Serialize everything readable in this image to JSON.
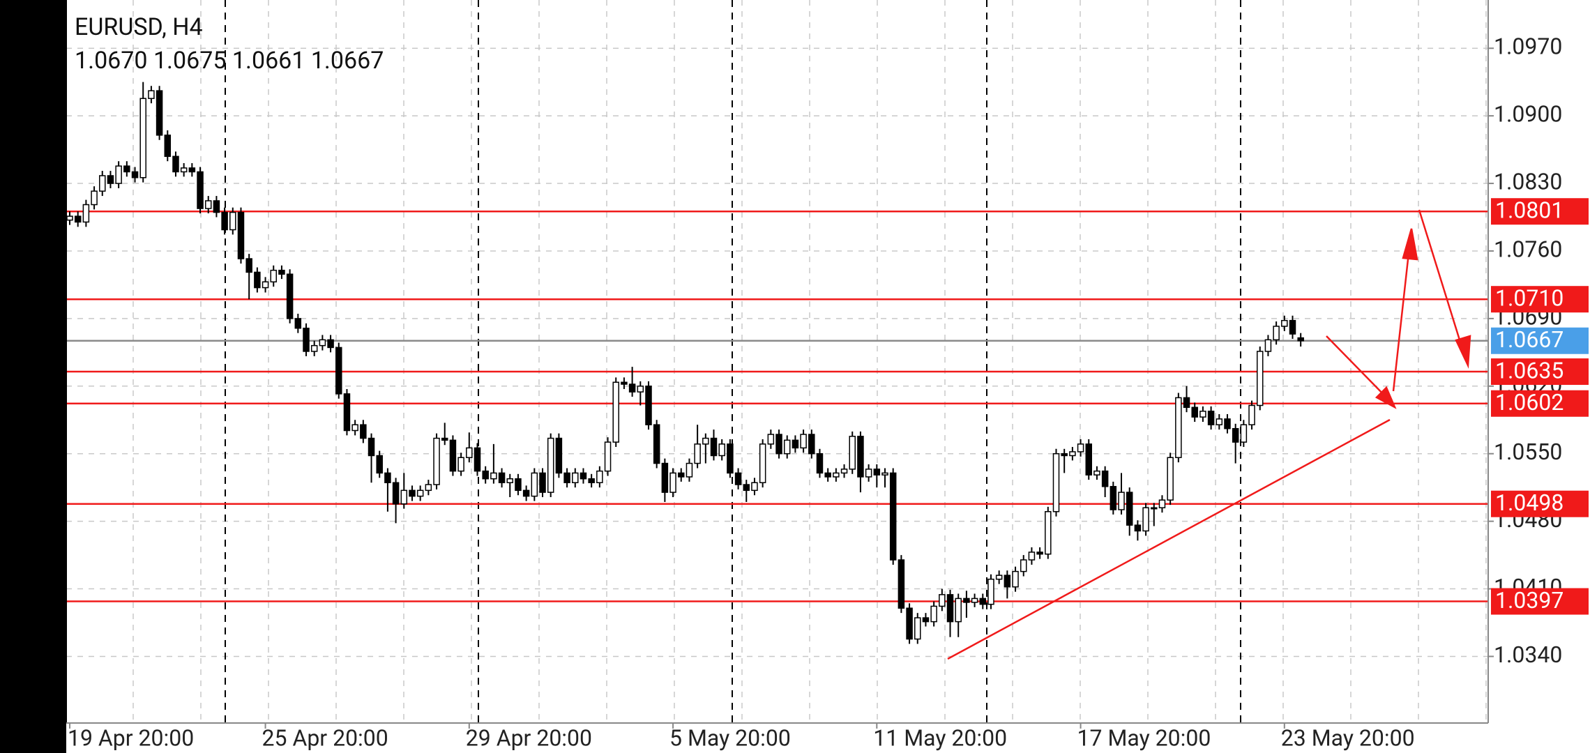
{
  "chart_data": {
    "type": "candlestick",
    "title": "EURUSD, H4",
    "subtitle": "1.0670 1.0675 1.0661 1.0667",
    "categories": [
      "19 Apr 20:00",
      null,
      null,
      null,
      null,
      null,
      null,
      null,
      null,
      null,
      null,
      null,
      null,
      null,
      null,
      null,
      null,
      null,
      null,
      null,
      null,
      null,
      null,
      null,
      "25 Apr 20:00",
      null,
      null,
      null,
      null,
      null,
      null,
      null,
      null,
      null,
      null,
      null,
      null,
      null,
      null,
      null,
      null,
      null,
      null,
      null,
      null,
      null,
      null,
      null,
      null,
      "29 Apr 20:00",
      null,
      null,
      null,
      null,
      null,
      null,
      null,
      null,
      null,
      null,
      null,
      null,
      null,
      null,
      null,
      null,
      null,
      null,
      null,
      null,
      null,
      null,
      null,
      null,
      "5 May 20:00",
      null,
      null,
      null,
      null,
      null,
      null,
      null,
      null,
      null,
      null,
      null,
      null,
      null,
      null,
      null,
      null,
      null,
      null,
      null,
      null,
      null,
      null,
      null,
      null,
      "11 May 20:00",
      null,
      null,
      null,
      null,
      null,
      null,
      null,
      null,
      null,
      null,
      null,
      null,
      null,
      null,
      null,
      null,
      null,
      null,
      null,
      null,
      null,
      null,
      null,
      null,
      "17 May 20:00",
      null,
      null,
      null,
      null,
      null,
      null,
      null,
      null,
      null,
      null,
      null,
      null,
      null,
      null,
      null,
      null,
      null,
      null,
      null,
      null,
      null,
      null,
      null,
      null,
      "23 May 20:00",
      null,
      null
    ],
    "open": [
      1.0792,
      1.0796,
      1.079,
      1.0808,
      1.0822,
      1.0838,
      1.083,
      1.0848,
      1.0842,
      1.0836,
      1.0918,
      1.0926,
      1.088,
      1.0858,
      1.0842,
      1.0846,
      1.0842,
      1.0804,
      1.0812,
      1.08,
      1.0782,
      1.08,
      1.0752,
      1.0738,
      1.0722,
      1.0728,
      1.074,
      1.0736,
      1.069,
      1.068,
      1.0656,
      1.0662,
      1.0668,
      1.066,
      1.0612,
      1.0574,
      1.058,
      1.0566,
      1.0548,
      1.053,
      1.052,
      1.0498,
      1.0512,
      1.0506,
      1.0512,
      1.0518,
      1.0566,
      1.0564,
      1.0532,
      1.0546,
      1.0556,
      1.0532,
      1.0524,
      1.053,
      1.052,
      1.0524,
      1.0512,
      1.0506,
      1.053,
      1.051,
      1.0566,
      1.053,
      1.052,
      1.053,
      1.0524,
      1.052,
      1.0532,
      1.0562,
      1.0624,
      1.0622,
      1.0614,
      1.062,
      1.058,
      1.054,
      1.051,
      1.053,
      1.0526,
      1.054,
      1.056,
      1.0566,
      1.0548,
      1.056,
      1.053,
      1.0518,
      1.0512,
      1.052,
      1.056,
      1.057,
      1.055,
      1.0564,
      1.0556,
      1.057,
      1.055,
      1.053,
      1.0526,
      1.053,
      1.0534,
      1.0568,
      1.0526,
      1.0534,
      1.0528,
      1.053,
      1.044,
      1.039,
      1.0358,
      1.038,
      1.0376,
      1.0392,
      1.0404,
      1.0376,
      1.04,
      1.0396,
      1.04,
      1.0394,
      1.042,
      1.0424,
      1.0412,
      1.0428,
      1.044,
      1.0448,
      1.0446,
      1.049,
      1.055,
      1.0548,
      1.0552,
      1.056,
      1.0528,
      1.0532,
      1.0516,
      1.0492,
      1.051,
      1.0476,
      1.047,
      1.0494,
      1.0494,
      1.0502,
      1.0546,
      1.0608,
      1.0598,
      1.0588,
      1.0594,
      1.058,
      1.0586,
      1.0576,
      1.0562,
      1.058,
      1.06,
      1.0656,
      1.0668,
      1.0682,
      1.0688,
      1.067
    ],
    "high": [
      1.0801,
      1.0801,
      1.0813,
      1.0827,
      1.0843,
      1.0843,
      1.0853,
      1.0853,
      1.0847,
      1.0935,
      1.0931,
      1.0931,
      1.0885,
      1.0863,
      1.0851,
      1.0851,
      1.0847,
      1.0817,
      1.0817,
      1.0805,
      1.0805,
      1.0805,
      1.0757,
      1.0743,
      1.0733,
      1.0745,
      1.0745,
      1.0741,
      1.0695,
      1.0685,
      1.0667,
      1.0673,
      1.0673,
      1.0665,
      1.0617,
      1.0585,
      1.0585,
      1.0571,
      1.0553,
      1.0535,
      1.0525,
      1.053,
      1.0517,
      1.0517,
      1.0523,
      1.0571,
      1.0582,
      1.0569,
      1.0551,
      1.0572,
      1.0561,
      1.0537,
      1.056,
      1.0535,
      1.0529,
      1.0529,
      1.0517,
      1.0535,
      1.0535,
      1.0571,
      1.0571,
      1.0535,
      1.0535,
      1.0535,
      1.0529,
      1.0537,
      1.0567,
      1.0629,
      1.0629,
      1.064,
      1.0625,
      1.0625,
      1.0585,
      1.0545,
      1.0535,
      1.0535,
      1.0545,
      1.058,
      1.0571,
      1.0575,
      1.0565,
      1.0565,
      1.0535,
      1.0523,
      1.0525,
      1.0565,
      1.0575,
      1.0575,
      1.0569,
      1.0569,
      1.0575,
      1.0575,
      1.0555,
      1.0535,
      1.0535,
      1.0539,
      1.0573,
      1.0573,
      1.0539,
      1.0539,
      1.0535,
      1.0535,
      1.0445,
      1.0395,
      1.0385,
      1.0385,
      1.0397,
      1.041,
      1.0409,
      1.0405,
      1.0408,
      1.0405,
      1.0405,
      1.0425,
      1.0429,
      1.0429,
      1.0433,
      1.0445,
      1.0453,
      1.0453,
      1.0495,
      1.0555,
      1.0555,
      1.0557,
      1.0565,
      1.0565,
      1.0537,
      1.0537,
      1.0521,
      1.053,
      1.0515,
      1.0481,
      1.0499,
      1.0499,
      1.0507,
      1.0551,
      1.0613,
      1.062,
      1.0603,
      1.0599,
      1.0599,
      1.0591,
      1.0591,
      1.0581,
      1.0585,
      1.0605,
      1.0661,
      1.0673,
      1.0687,
      1.0693,
      1.0693,
      1.0675
    ],
    "low": [
      1.0787,
      1.0785,
      1.0785,
      1.0803,
      1.0817,
      1.0825,
      1.0825,
      1.0837,
      1.0831,
      1.0831,
      1.0913,
      1.0875,
      1.0853,
      1.0837,
      1.0837,
      1.0837,
      1.0799,
      1.0799,
      1.0795,
      1.0777,
      1.0777,
      1.0747,
      1.071,
      1.0717,
      1.0717,
      1.0723,
      1.0731,
      1.0685,
      1.0675,
      1.0651,
      1.0651,
      1.0657,
      1.0655,
      1.0607,
      1.0569,
      1.0569,
      1.0561,
      1.052,
      1.0525,
      1.049,
      1.0478,
      1.0493,
      1.0501,
      1.0501,
      1.0507,
      1.0513,
      1.0559,
      1.0527,
      1.0527,
      1.0541,
      1.0527,
      1.0519,
      1.0519,
      1.0515,
      1.0505,
      1.0507,
      1.0501,
      1.0501,
      1.0505,
      1.0505,
      1.0525,
      1.0515,
      1.0515,
      1.0519,
      1.0515,
      1.0515,
      1.0527,
      1.0557,
      1.0617,
      1.0609,
      1.06,
      1.0575,
      1.0535,
      1.05,
      1.0505,
      1.0521,
      1.0521,
      1.0535,
      1.054,
      1.0543,
      1.0543,
      1.0525,
      1.0513,
      1.05,
      1.0507,
      1.0515,
      1.0555,
      1.0545,
      1.0545,
      1.0551,
      1.0551,
      1.0545,
      1.0525,
      1.0521,
      1.0521,
      1.0525,
      1.0529,
      1.051,
      1.0521,
      1.0515,
      1.0515,
      1.0435,
      1.0385,
      1.0353,
      1.0353,
      1.0371,
      1.0371,
      1.0387,
      1.036,
      1.036,
      1.038,
      1.0391,
      1.0389,
      1.0389,
      1.0415,
      1.04,
      1.0407,
      1.0423,
      1.0435,
      1.0441,
      1.0441,
      1.0485,
      1.053,
      1.0543,
      1.0547,
      1.0523,
      1.0523,
      1.0505,
      1.0487,
      1.0487,
      1.0465,
      1.046,
      1.0465,
      1.0475,
      1.0489,
      1.0497,
      1.0541,
      1.0593,
      1.0583,
      1.0583,
      1.0575,
      1.0575,
      1.0571,
      1.054,
      1.0557,
      1.0575,
      1.0595,
      1.0651,
      1.0663,
      1.0677,
      1.0669,
      1.0661
    ],
    "close": [
      1.0796,
      1.079,
      1.0808,
      1.0822,
      1.0838,
      1.083,
      1.0848,
      1.0842,
      1.0836,
      1.0918,
      1.0926,
      1.088,
      1.0858,
      1.0842,
      1.0846,
      1.0842,
      1.0804,
      1.0812,
      1.08,
      1.0782,
      1.08,
      1.0752,
      1.0738,
      1.0722,
      1.0728,
      1.074,
      1.0736,
      1.069,
      1.068,
      1.0656,
      1.0662,
      1.0668,
      1.066,
      1.0612,
      1.0574,
      1.058,
      1.0566,
      1.0548,
      1.053,
      1.052,
      1.0498,
      1.0512,
      1.0506,
      1.0512,
      1.0518,
      1.0566,
      1.0564,
      1.0532,
      1.0546,
      1.0556,
      1.0532,
      1.0524,
      1.053,
      1.052,
      1.0524,
      1.0512,
      1.0506,
      1.053,
      1.051,
      1.0566,
      1.053,
      1.052,
      1.053,
      1.0524,
      1.052,
      1.0532,
      1.0562,
      1.0624,
      1.0622,
      1.0614,
      1.062,
      1.058,
      1.054,
      1.051,
      1.053,
      1.0526,
      1.054,
      1.056,
      1.0566,
      1.0548,
      1.056,
      1.053,
      1.0518,
      1.0512,
      1.052,
      1.056,
      1.057,
      1.055,
      1.0564,
      1.0556,
      1.057,
      1.055,
      1.053,
      1.0526,
      1.053,
      1.0534,
      1.0568,
      1.0526,
      1.0534,
      1.0528,
      1.053,
      1.044,
      1.039,
      1.0358,
      1.038,
      1.0376,
      1.0392,
      1.0404,
      1.0376,
      1.04,
      1.0396,
      1.04,
      1.0394,
      1.042,
      1.0424,
      1.0412,
      1.0428,
      1.044,
      1.0448,
      1.0446,
      1.049,
      1.055,
      1.0548,
      1.0552,
      1.056,
      1.0528,
      1.0532,
      1.0516,
      1.0492,
      1.051,
      1.0476,
      1.047,
      1.0494,
      1.0494,
      1.0502,
      1.0546,
      1.0608,
      1.0598,
      1.0588,
      1.0594,
      1.058,
      1.0586,
      1.0576,
      1.0562,
      1.058,
      1.06,
      1.0656,
      1.0668,
      1.0682,
      1.0688,
      1.0674,
      1.0667
    ],
    "up_color": "#ffffff",
    "down_color": "#000000",
    "ylim": [
      1.0271,
      1.102
    ],
    "yticks": [
      {
        "value": 1.097,
        "label": "1.0970"
      },
      {
        "value": 1.09,
        "label": "1.0900"
      },
      {
        "value": 1.083,
        "label": "1.0830"
      },
      {
        "value": 1.076,
        "label": "1.0760"
      },
      {
        "value": 1.069,
        "label": "1.0690"
      },
      {
        "value": 1.062,
        "label": "1.0620"
      },
      {
        "value": 1.055,
        "label": "1.0550"
      },
      {
        "value": 1.048,
        "label": "1.0480"
      },
      {
        "value": 1.041,
        "label": "1.0410"
      },
      {
        "value": 1.034,
        "label": "1.0340"
      }
    ],
    "grid": true,
    "levels": [
      {
        "value": 1.0801,
        "label": "1.0801"
      },
      {
        "value": 1.071,
        "label": "1.0710"
      },
      {
        "value": 1.0635,
        "label": "1.0635"
      },
      {
        "value": 1.0602,
        "label": "1.0602"
      },
      {
        "value": 1.0498,
        "label": "1.0498"
      },
      {
        "value": 1.0397,
        "label": "1.0397"
      }
    ],
    "level_color": "#f01a1a",
    "current_price": {
      "value": 1.0667,
      "label": "1.0667"
    },
    "current_color": "#4a9fe8"
  }
}
